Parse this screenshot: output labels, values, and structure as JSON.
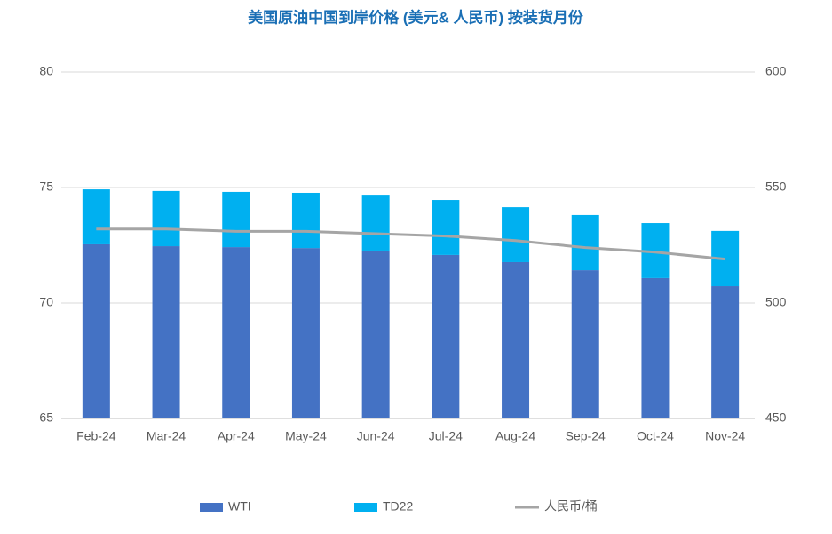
{
  "chart_data": {
    "type": "bar",
    "stacked": true,
    "title": "美国原油中国到岸价格 (美元& 人民币) 按装货月份",
    "categories": [
      "Feb-24",
      "Mar-24",
      "Apr-24",
      "May-24",
      "Jun-24",
      "Jul-24",
      "Aug-24",
      "Sep-24",
      "Oct-24",
      "Nov-24"
    ],
    "series": [
      {
        "name": "WTI",
        "type": "bar",
        "color": "#4472c4",
        "values": [
          72.54,
          72.46,
          72.42,
          72.38,
          72.27,
          72.08,
          71.77,
          71.42,
          71.08,
          70.73
        ]
      },
      {
        "name": "TD22",
        "type": "bar",
        "color": "#00b0f0",
        "values": [
          2.38,
          2.39,
          2.39,
          2.39,
          2.38,
          2.38,
          2.38,
          2.39,
          2.38,
          2.39
        ]
      },
      {
        "name": "人民币/桶",
        "type": "line",
        "axis": "y2",
        "color": "#a5a5a5",
        "values": [
          532,
          532,
          531,
          531,
          530,
          529,
          527,
          524,
          522,
          519
        ]
      }
    ],
    "ylim": [
      65,
      80
    ],
    "yticks": [
      65,
      70,
      75,
      80
    ],
    "y2lim": [
      450,
      600
    ],
    "y2ticks": [
      450,
      500,
      550,
      600
    ],
    "grid": true,
    "legend": "bottom"
  }
}
